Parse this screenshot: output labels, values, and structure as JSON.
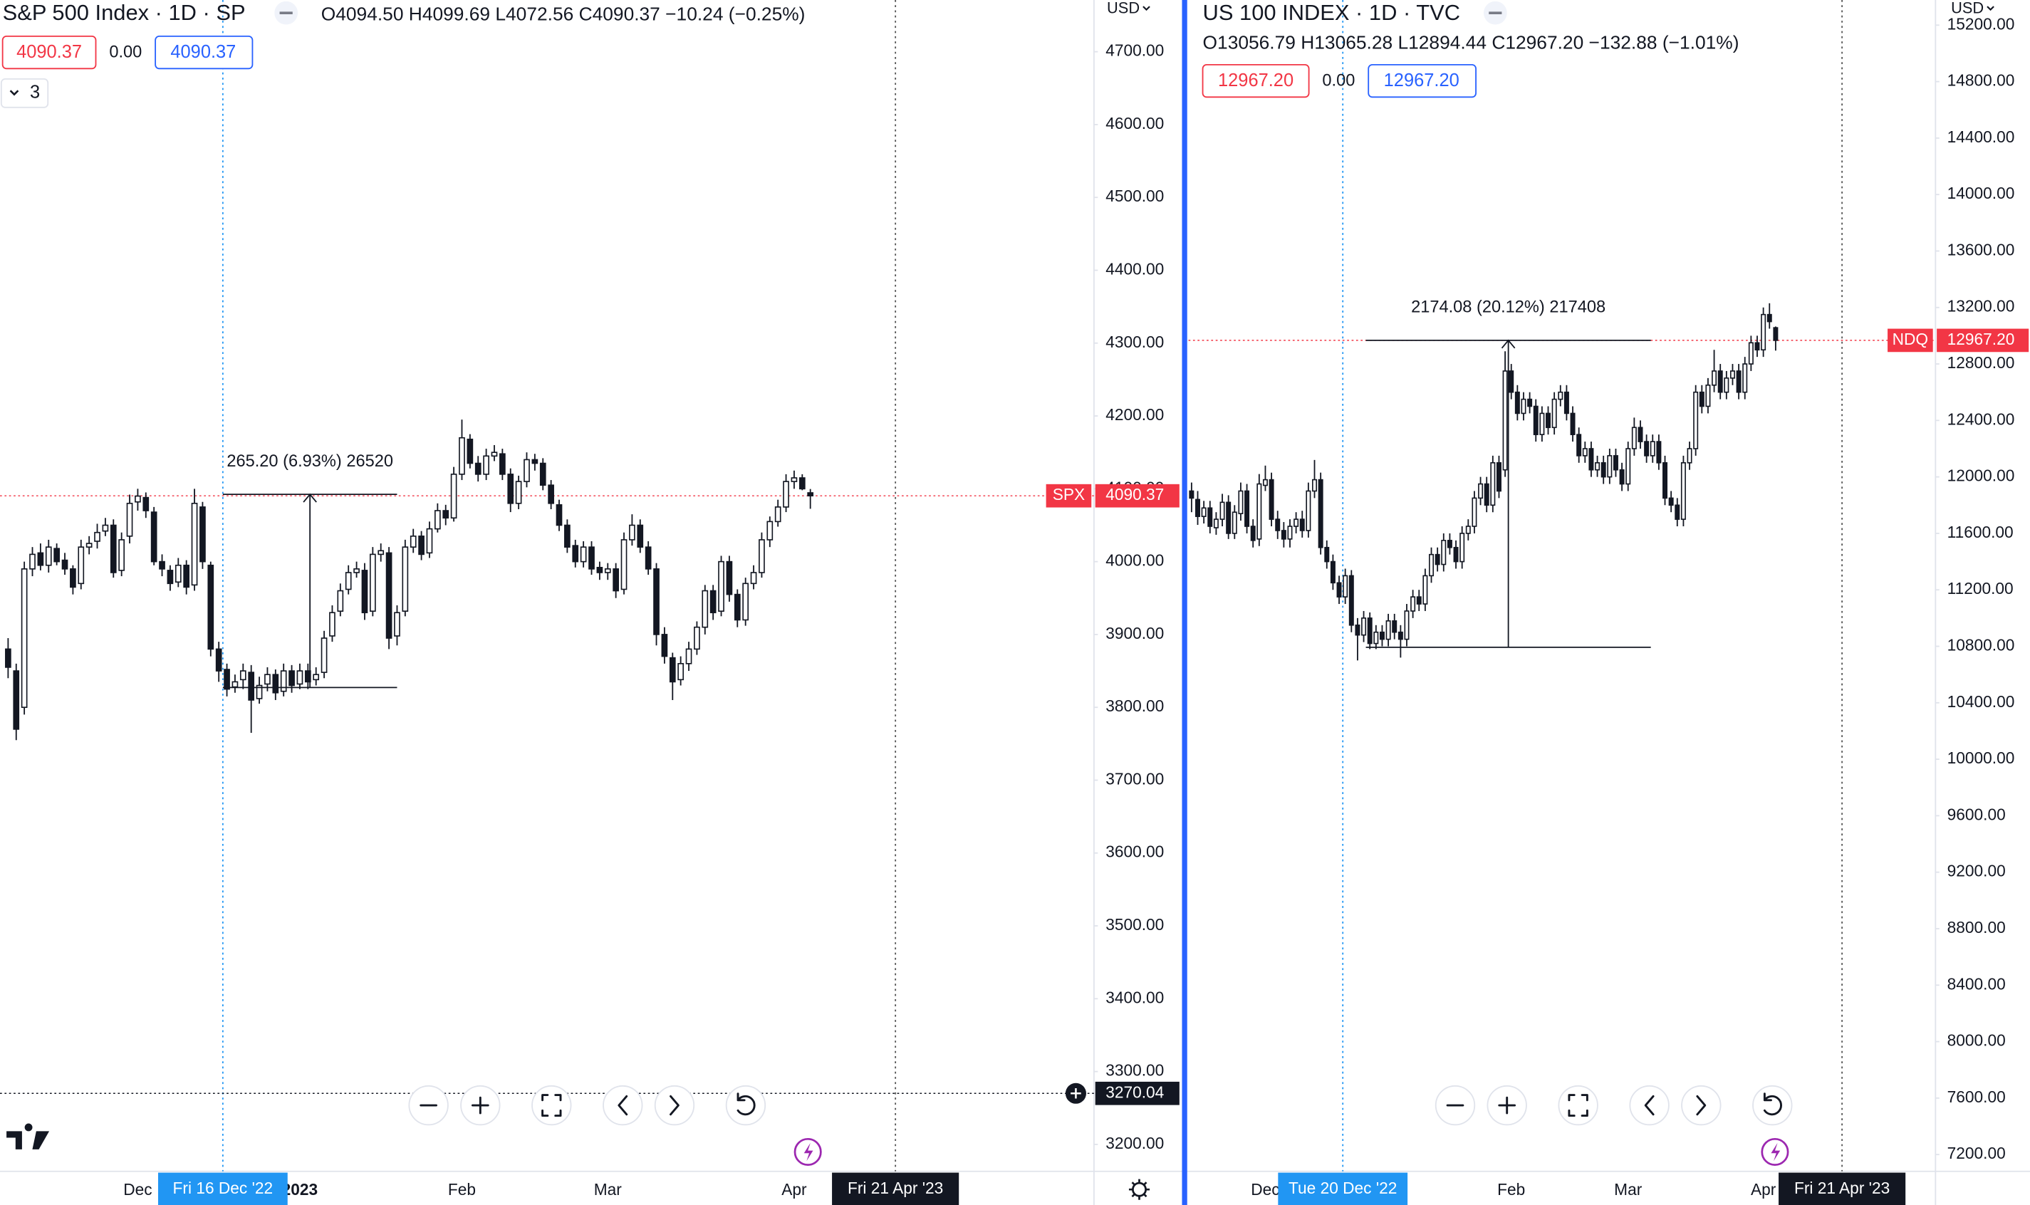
{
  "chart_data": [
    {
      "type": "candlestick",
      "title": "S&P 500 Index · 1D · SP",
      "ohlc_text": "O4094.50 H4099.69 L4072.56 C4090.37 −10.24 (−0.25%)",
      "price_boxes": [
        "4090.37",
        "0.00",
        "4090.37"
      ],
      "indicator_toggle": 3,
      "currency": "USD",
      "xlim": [
        -1,
        134
      ],
      "ylim": [
        3163,
        4771
      ],
      "yticks": [
        {
          "value": 3200,
          "label": "3200.00"
        },
        {
          "value": 3300,
          "label": "3300.00"
        },
        {
          "value": 3400,
          "label": "3400.00"
        },
        {
          "value": 3500,
          "label": "3500.00"
        },
        {
          "value": 3600,
          "label": "3600.00"
        },
        {
          "value": 3700,
          "label": "3700.00"
        },
        {
          "value": 3800,
          "label": "3800.00"
        },
        {
          "value": 3900,
          "label": "3900.00"
        },
        {
          "value": 4000,
          "label": "4000.00"
        },
        {
          "value": 4100,
          "label": "4100.00"
        },
        {
          "value": 4200,
          "label": "4200.00"
        },
        {
          "value": 4300,
          "label": "4300.00"
        },
        {
          "value": 4400,
          "label": "4400.00"
        },
        {
          "value": 4500,
          "label": "4500.00"
        },
        {
          "value": 4600,
          "label": "4600.00"
        },
        {
          "value": 4700,
          "label": "4700.00"
        }
      ],
      "xticks": [
        {
          "value": 16,
          "label": "Dec"
        },
        {
          "value": 36,
          "label": "2023"
        },
        {
          "value": 56,
          "label": "Feb"
        },
        {
          "value": 74,
          "label": "Mar"
        },
        {
          "value": 97,
          "label": "Apr"
        }
      ],
      "x": [
        0,
        1,
        2,
        3,
        4,
        5,
        6,
        7,
        8,
        9,
        10,
        11,
        12,
        13,
        14,
        15,
        16,
        17,
        18,
        19,
        20,
        21,
        22,
        23,
        24,
        25,
        26,
        27,
        28,
        29,
        30,
        31,
        32,
        33,
        34,
        35,
        36,
        37,
        38,
        39,
        40,
        41,
        42,
        43,
        44,
        45,
        46,
        47,
        48,
        49,
        50,
        51,
        52,
        53,
        54,
        55,
        56,
        57,
        58,
        59,
        60,
        61,
        62,
        63,
        64,
        65,
        66,
        67,
        68,
        69,
        70,
        71,
        72,
        73,
        74,
        75,
        76,
        77,
        78,
        79,
        80,
        81,
        82,
        83,
        84,
        85,
        86,
        87,
        88,
        89,
        90,
        91,
        92,
        93,
        94,
        95,
        96,
        97,
        98,
        99
      ],
      "open": [
        3880,
        3850,
        3800,
        3990,
        4012,
        3995,
        4018,
        4002,
        3990,
        3970,
        4020,
        4028,
        4042,
        4050,
        3988,
        4035,
        4082,
        4088,
        4068,
        4000,
        3988,
        3972,
        3995,
        3968,
        4075,
        3995,
        3880,
        3852,
        3828,
        3838,
        3848,
        3812,
        3832,
        3845,
        3822,
        3850,
        3832,
        3850,
        3838,
        3848,
        3898,
        3932,
        3962,
        3985,
        3988,
        3932,
        4010,
        4012,
        3898,
        3932,
        4020,
        4035,
        4012,
        4045,
        4070,
        4060,
        4120,
        4168,
        4135,
        4120,
        4145,
        4148,
        4120,
        4080,
        4110,
        4140,
        4135,
        4105,
        4078,
        4050,
        4022,
        4000,
        4020,
        3992,
        3985,
        3990,
        3962,
        4030,
        4050,
        4020,
        3990,
        3900,
        3868,
        3838,
        3860,
        3880,
        3910,
        3960,
        3932,
        4000,
        3955,
        3920,
        3970,
        3985,
        4030,
        4055,
        4075,
        4110,
        4115,
        4094.5
      ],
      "high": [
        3895,
        3860,
        4000,
        4020,
        4025,
        4030,
        4025,
        4012,
        3995,
        4030,
        4035,
        4052,
        4060,
        4058,
        4040,
        4092,
        4100,
        4095,
        4075,
        4010,
        3995,
        4005,
        4002,
        4100,
        4082,
        4000,
        3890,
        3860,
        3845,
        3860,
        3858,
        3842,
        3855,
        3852,
        3860,
        3858,
        3860,
        3860,
        3855,
        3905,
        3940,
        3970,
        3995,
        4000,
        3998,
        4020,
        4025,
        4020,
        3940,
        4030,
        4045,
        4042,
        4055,
        4080,
        4078,
        4130,
        4195,
        4175,
        4145,
        4155,
        4160,
        4155,
        4128,
        4118,
        4150,
        4148,
        4142,
        4112,
        4085,
        4058,
        4030,
        4028,
        4028,
        4000,
        3998,
        3998,
        4040,
        4065,
        4058,
        4028,
        3998,
        3910,
        3875,
        3870,
        3890,
        3918,
        3968,
        3968,
        4008,
        4008,
        3962,
        3978,
        3995,
        4040,
        4062,
        4085,
        4120,
        4125,
        4120,
        4099.69
      ],
      "low": [
        3840,
        3755,
        3790,
        3980,
        3988,
        3985,
        3995,
        3982,
        3955,
        3962,
        4010,
        4018,
        4035,
        3978,
        3980,
        4025,
        4070,
        4060,
        3995,
        3980,
        3960,
        3965,
        3955,
        3960,
        3990,
        3870,
        3835,
        3815,
        3820,
        3825,
        3765,
        3805,
        3822,
        3810,
        3815,
        3820,
        3825,
        3825,
        3830,
        3840,
        3890,
        3925,
        3955,
        3978,
        3920,
        3925,
        4000,
        3880,
        3885,
        3925,
        4012,
        4002,
        4005,
        4040,
        4050,
        4055,
        4112,
        4128,
        4110,
        4112,
        4138,
        4112,
        4068,
        4072,
        4102,
        4125,
        4098,
        4072,
        4042,
        4012,
        3992,
        3992,
        3982,
        3975,
        3975,
        3950,
        3955,
        4022,
        4012,
        3982,
        3885,
        3860,
        3810,
        3830,
        3850,
        3872,
        3900,
        3920,
        3925,
        3945,
        3910,
        3912,
        3962,
        3978,
        4020,
        4048,
        4068,
        4100,
        4098,
        4072.56
      ],
      "close": [
        3855,
        3770,
        3990,
        4010,
        3995,
        4020,
        4000,
        3990,
        3965,
        4020,
        4025,
        4040,
        4050,
        3985,
        4030,
        4080,
        4090,
        4070,
        4000,
        3990,
        3970,
        3995,
        3965,
        4080,
        4000,
        3880,
        3850,
        3825,
        3835,
        3850,
        3810,
        3830,
        3845,
        3820,
        3850,
        3830,
        3850,
        3835,
        3845,
        3895,
        3930,
        3960,
        3985,
        3990,
        3930,
        4010,
        4015,
        3895,
        3930,
        4020,
        4035,
        4010,
        4045,
        4070,
        4060,
        4120,
        4170,
        4135,
        4120,
        4145,
        4150,
        4120,
        4080,
        4110,
        4140,
        4135,
        4105,
        4080,
        4050,
        4020,
        4000,
        4020,
        3990,
        3985,
        3990,
        3960,
        4030,
        4050,
        4020,
        3990,
        3900,
        3870,
        3835,
        3860,
        3880,
        3910,
        3960,
        3930,
        4000,
        3955,
        3920,
        3970,
        3985,
        4030,
        4055,
        4075,
        4110,
        4115,
        4100,
        4090.37
      ],
      "last_price": {
        "symbol": "SPX",
        "value": 4090.37
      },
      "crosshair": {
        "x": {
          "value": 26.5,
          "label": "Fri 16 Dec '22"
        },
        "y": 3270.04
      },
      "sync_date": {
        "value": 109.5,
        "label": "Fri 21 Apr '23"
      },
      "measure": {
        "label": "265.20 (6.93%) 26520",
        "x": [
          26.5,
          48
        ],
        "from": 3827.17,
        "to": 4092.37
      }
    },
    {
      "type": "candlestick",
      "title": "US 100 INDEX · 1D · TVC",
      "ohlc_text": "O13056.79 H13065.28 L12894.44 C12967.20 −132.88 (−1.01%)",
      "price_boxes": [
        "12967.20",
        "0.00",
        "12967.20"
      ],
      "currency": "USD",
      "xlim": [
        -0.5,
        121
      ],
      "ylim": [
        7081,
        15378
      ],
      "yticks": [
        {
          "value": 7200,
          "label": "7200.00"
        },
        {
          "value": 7600,
          "label": "7600.00"
        },
        {
          "value": 8000,
          "label": "8000.00"
        },
        {
          "value": 8400,
          "label": "8400.00"
        },
        {
          "value": 8800,
          "label": "8800.00"
        },
        {
          "value": 9200,
          "label": "9200.00"
        },
        {
          "value": 9600,
          "label": "9600.00"
        },
        {
          "value": 10000,
          "label": "10000.00"
        },
        {
          "value": 10400,
          "label": "10400.00"
        },
        {
          "value": 10800,
          "label": "10800.00"
        },
        {
          "value": 11200,
          "label": "11200.00"
        },
        {
          "value": 11600,
          "label": "11600.00"
        },
        {
          "value": 12000,
          "label": "12000.00"
        },
        {
          "value": 12400,
          "label": "12400.00"
        },
        {
          "value": 12800,
          "label": "12800.00"
        },
        {
          "value": 13200,
          "label": "13200.00"
        },
        {
          "value": 13600,
          "label": "13600.00"
        },
        {
          "value": 14000,
          "label": "14000.00"
        },
        {
          "value": 14400,
          "label": "14400.00"
        },
        {
          "value": 14800,
          "label": "14800.00"
        },
        {
          "value": 15200,
          "label": "15200.00"
        }
      ],
      "xticks": [
        {
          "value": 12,
          "label": "Dec"
        },
        {
          "value": 52,
          "label": "Feb"
        },
        {
          "value": 71,
          "label": "Mar"
        },
        {
          "value": 93,
          "label": "Apr"
        }
      ],
      "x": [
        0,
        1,
        2,
        3,
        4,
        5,
        6,
        7,
        8,
        9,
        10,
        11,
        12,
        13,
        14,
        15,
        16,
        17,
        18,
        19,
        20,
        21,
        22,
        23,
        24,
        25,
        26,
        27,
        28,
        29,
        30,
        31,
        32,
        33,
        34,
        35,
        36,
        37,
        38,
        39,
        40,
        41,
        42,
        43,
        44,
        45,
        46,
        47,
        48,
        49,
        50,
        51,
        52,
        53,
        54,
        55,
        56,
        57,
        58,
        59,
        60,
        61,
        62,
        63,
        64,
        65,
        66,
        67,
        68,
        69,
        70,
        71,
        72,
        73,
        74,
        75,
        76,
        77,
        78,
        79,
        80,
        81,
        82,
        83,
        84,
        85,
        86,
        87,
        88,
        89,
        90,
        91,
        92,
        93,
        94,
        95
      ],
      "open": [
        11900,
        11840,
        11720,
        11780,
        11640,
        11700,
        11820,
        11600,
        11740,
        11900,
        11650,
        11560,
        11940,
        11980,
        11700,
        11620,
        11560,
        11650,
        11700,
        11620,
        11900,
        11980,
        11500,
        11400,
        11250,
        11150,
        11300,
        10950,
        10880,
        11000,
        10820,
        10900,
        10850,
        10980,
        10900,
        10850,
        11050,
        11150,
        11100,
        11300,
        11450,
        11380,
        11550,
        11500,
        11400,
        11600,
        11650,
        11850,
        11950,
        11800,
        12100,
        12050,
        12750,
        12600,
        12450,
        12550,
        12500,
        12300,
        12450,
        12350,
        12550,
        12600,
        12450,
        12300,
        12150,
        12200,
        12050,
        12100,
        12000,
        12150,
        12050,
        11950,
        12200,
        12350,
        12250,
        12150,
        12250,
        12100,
        11850,
        11800,
        11700,
        12100,
        12200,
        12600,
        12500,
        12650,
        12750,
        12600,
        12700,
        12750,
        12600,
        12800,
        12950,
        12900,
        13150,
        13056.79
      ],
      "high": [
        11960,
        11900,
        11830,
        11830,
        11750,
        11880,
        11870,
        11800,
        11960,
        11950,
        11700,
        12020,
        12080,
        12030,
        11760,
        11680,
        11700,
        11750,
        11760,
        11960,
        12120,
        12030,
        11550,
        11450,
        11300,
        11350,
        11340,
        11000,
        11050,
        11040,
        10950,
        10950,
        11030,
        11030,
        10950,
        11100,
        11200,
        11200,
        11350,
        11500,
        11500,
        11600,
        11600,
        11550,
        11650,
        11700,
        11900,
        12000,
        12000,
        12150,
        12150,
        12890,
        12800,
        12650,
        12600,
        12600,
        12550,
        12500,
        12500,
        12600,
        12650,
        12650,
        12500,
        12350,
        12250,
        12250,
        12150,
        12150,
        12200,
        12200,
        12100,
        12250,
        12420,
        12400,
        12300,
        12300,
        12300,
        12150,
        11900,
        11850,
        12150,
        12250,
        12650,
        12650,
        12700,
        12900,
        12800,
        12750,
        12800,
        12800,
        12850,
        13000,
        13000,
        13200,
        13230,
        13065.28
      ],
      "low": [
        11750,
        11660,
        11670,
        11600,
        11590,
        11650,
        11560,
        11560,
        11690,
        11600,
        11500,
        11510,
        11900,
        11650,
        11560,
        11500,
        11500,
        11600,
        11570,
        11570,
        11850,
        11450,
        11350,
        11200,
        11100,
        11100,
        10900,
        10700,
        10830,
        10780,
        10780,
        10800,
        10800,
        10850,
        10720,
        10800,
        11000,
        11050,
        11050,
        11250,
        11330,
        11330,
        11450,
        11350,
        11350,
        11550,
        11600,
        11800,
        11750,
        11750,
        11850,
        12000,
        12550,
        12400,
        12400,
        12450,
        12250,
        12250,
        12300,
        12300,
        12500,
        12400,
        12250,
        12100,
        12100,
        12000,
        12000,
        11950,
        11950,
        12000,
        11900,
        11900,
        12150,
        12200,
        12100,
        12100,
        12050,
        11800,
        11750,
        11650,
        11650,
        12050,
        12150,
        12450,
        12450,
        12600,
        12550,
        12550,
        12650,
        12550,
        12550,
        12750,
        12850,
        12850,
        13050,
        12894.44
      ],
      "close": [
        11850,
        11720,
        11780,
        11650,
        11700,
        11820,
        11600,
        11750,
        11900,
        11650,
        11550,
        11950,
        11980,
        11700,
        11620,
        11560,
        11650,
        11700,
        11620,
        11900,
        11980,
        11500,
        11400,
        11250,
        11150,
        11300,
        10950,
        10880,
        11000,
        10820,
        10900,
        10850,
        10980,
        10900,
        10850,
        11050,
        11150,
        11100,
        11300,
        11450,
        11380,
        11550,
        11500,
        11400,
        11600,
        11650,
        11850,
        11950,
        11800,
        12100,
        11900,
        12750,
        12600,
        12450,
        12550,
        12500,
        12300,
        12450,
        12350,
        12550,
        12600,
        12450,
        12300,
        12150,
        12200,
        12050,
        12100,
        12000,
        12150,
        12050,
        11950,
        12200,
        12350,
        12250,
        12150,
        12250,
        12100,
        11850,
        11800,
        11700,
        12100,
        12200,
        12600,
        12500,
        12650,
        12750,
        12600,
        12700,
        12750,
        12600,
        12800,
        12950,
        12900,
        13150,
        13100,
        12967.2
      ],
      "last_price": {
        "symbol": "NDQ",
        "value": {
          "value": 12967.2,
          "label": "12967.20"
        }
      },
      "crosshair": {
        "x": {
          "value": 24.6,
          "label": "Tue 20 Dec '22"
        }
      },
      "sync_date": {
        "value": 105.8,
        "label": "Fri 21 Apr '23"
      },
      "measure": {
        "label": "2174.08 (20.12%) 217408",
        "x": [
          28.35,
          74.7
        ],
        "from": 10793.12,
        "to": 12967.2
      }
    }
  ]
}
